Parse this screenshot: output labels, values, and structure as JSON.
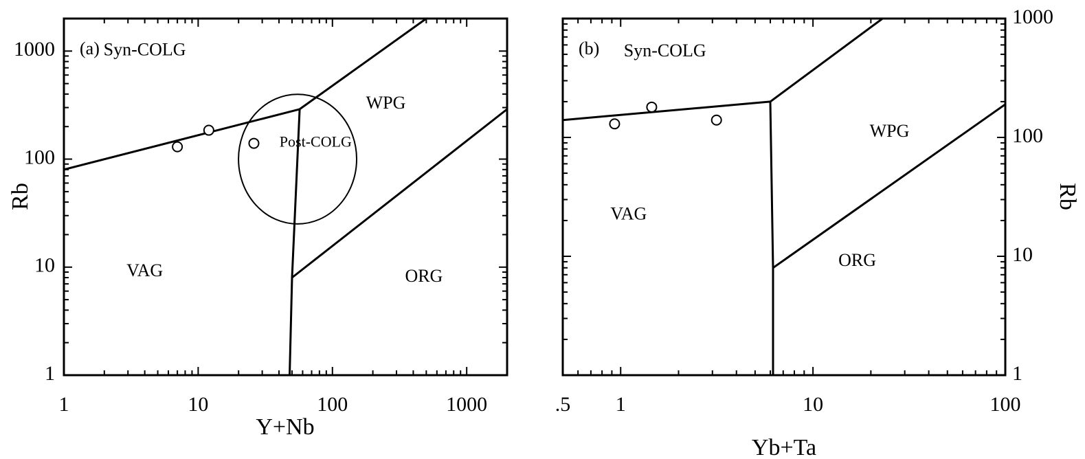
{
  "chart_data": [
    {
      "type": "scatter",
      "panel_label": "(a)",
      "xlabel": "Y+Nb",
      "ylabel": "Rb",
      "xscale": "log",
      "yscale": "log",
      "xlim": [
        1,
        2000
      ],
      "ylim": [
        1,
        2000
      ],
      "xticks": [
        {
          "value": 1,
          "label": "1"
        },
        {
          "value": 10,
          "label": "10"
        },
        {
          "value": 100,
          "label": "100"
        },
        {
          "value": 1000,
          "label": "1000"
        }
      ],
      "yticks": [
        {
          "value": 1,
          "label": "1"
        },
        {
          "value": 10,
          "label": "10"
        },
        {
          "value": 100,
          "label": "100"
        },
        {
          "value": 1000,
          "label": "1000"
        }
      ],
      "ylabel_side": "left",
      "points": [
        {
          "x": 7,
          "y": 130
        },
        {
          "x": 12,
          "y": 185
        },
        {
          "x": 26,
          "y": 140
        }
      ],
      "boundaries": [
        {
          "name": "syn-colg-vag",
          "points": [
            [
              1,
              80
            ],
            [
              57,
              290
            ]
          ]
        },
        {
          "name": "syn-colg-wpg",
          "points": [
            [
              57,
              290
            ],
            [
              500,
              2000
            ]
          ]
        },
        {
          "name": "vag-wpg-org",
          "points": [
            [
              57,
              290
            ],
            [
              50,
              8
            ],
            [
              48,
              1
            ]
          ]
        },
        {
          "name": "wpg-org",
          "points": [
            [
              50,
              8
            ],
            [
              2000,
              290
            ]
          ]
        }
      ],
      "post_colg_ellipse": {
        "cx": 55,
        "cy": 100,
        "x_half_width_log": 0.44,
        "y_half_height_log": 0.6
      },
      "regions": [
        {
          "label": "Syn-COLG",
          "x": 4,
          "y": 1000
        },
        {
          "label": "WPG",
          "x": 250,
          "y": 320
        },
        {
          "label": "Post-COLG",
          "x": 75,
          "y": 140,
          "small": true
        },
        {
          "label": "VAG",
          "x": 4,
          "y": 9
        },
        {
          "label": "ORG",
          "x": 480,
          "y": 8
        }
      ]
    },
    {
      "type": "scatter",
      "panel_label": "(b)",
      "xlabel": "Yb+Ta",
      "ylabel": "Rb",
      "xscale": "log",
      "yscale": "log",
      "xlim": [
        0.5,
        100
      ],
      "ylim": [
        1,
        1000
      ],
      "xticks": [
        {
          "value": 0.5,
          "label": ".5"
        },
        {
          "value": 1,
          "label": "1"
        },
        {
          "value": 10,
          "label": "10"
        },
        {
          "value": 100,
          "label": "100"
        }
      ],
      "yticks": [
        {
          "value": 1,
          "label": "1"
        },
        {
          "value": 10,
          "label": "10"
        },
        {
          "value": 100,
          "label": "100"
        },
        {
          "value": 1000,
          "label": "1000"
        }
      ],
      "ylabel_side": "right",
      "points": [
        {
          "x": 0.93,
          "y": 130
        },
        {
          "x": 1.45,
          "y": 180
        },
        {
          "x": 3.15,
          "y": 140
        }
      ],
      "boundaries": [
        {
          "name": "syn-colg-vag",
          "points": [
            [
              0.5,
              140
            ],
            [
              6,
              200
            ]
          ]
        },
        {
          "name": "syn-colg-wpg",
          "points": [
            [
              6,
              200
            ],
            [
              23,
              1000
            ]
          ]
        },
        {
          "name": "vag-wpg-org",
          "points": [
            [
              6,
              200
            ],
            [
              6.2,
              8
            ],
            [
              6.2,
              1
            ]
          ]
        },
        {
          "name": "wpg-org",
          "points": [
            [
              6.2,
              8
            ],
            [
              100,
              190
            ]
          ]
        }
      ],
      "regions": [
        {
          "label": "Syn-COLG",
          "x": 1.7,
          "y": 520
        },
        {
          "label": "WPG",
          "x": 25,
          "y": 110
        },
        {
          "label": "VAG",
          "x": 1.1,
          "y": 22
        },
        {
          "label": "ORG",
          "x": 17,
          "y": 9
        }
      ]
    }
  ]
}
